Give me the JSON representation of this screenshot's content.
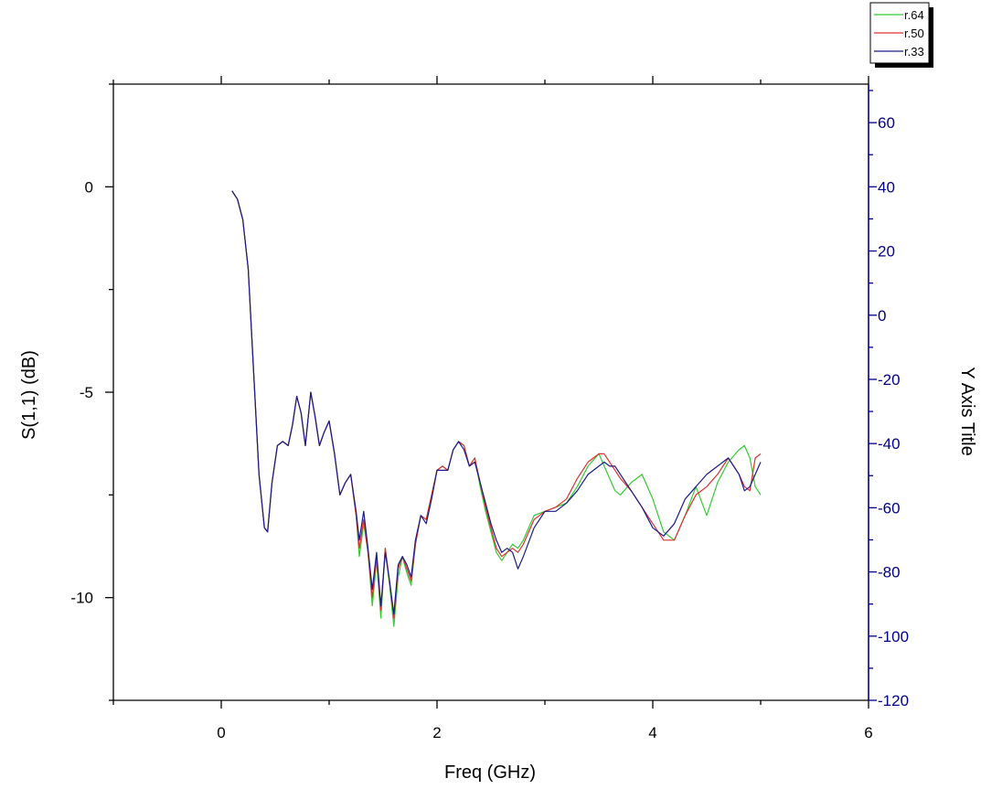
{
  "chart_data": {
    "type": "line",
    "xlabel": "Freq (GHz)",
    "ylabel": "S(1,1) (dB)",
    "y2label": "Y Axis Title",
    "xlim": [
      -1,
      6
    ],
    "ylim": [
      -12.5,
      2.5
    ],
    "y2lim": [
      -120,
      72
    ],
    "xticks": [
      0,
      2,
      4,
      6
    ],
    "yticks": [
      -10,
      -5,
      0
    ],
    "y2ticks": [
      60,
      40,
      20,
      0,
      -20,
      -40,
      -60,
      -80,
      -100,
      -120
    ],
    "legend_position": "top-right",
    "colors": {
      "axis": "#000000",
      "y2axis": "#00008b",
      "r64": "#33cc33",
      "r50": "#e03030",
      "r33": "#1a1a8c"
    },
    "series": [
      {
        "name": "r.64",
        "color": "#33cc33",
        "x": [
          0.1,
          0.15,
          0.2,
          0.25,
          0.3,
          0.35,
          0.4,
          0.43,
          0.47,
          0.52,
          0.57,
          0.62,
          0.66,
          0.7,
          0.74,
          0.78,
          0.83,
          0.87,
          0.91,
          0.95,
          1.0,
          1.05,
          1.1,
          1.15,
          1.2,
          1.25,
          1.28,
          1.32,
          1.36,
          1.4,
          1.44,
          1.48,
          1.52,
          1.56,
          1.6,
          1.64,
          1.68,
          1.72,
          1.76,
          1.8,
          1.85,
          1.9,
          1.95,
          2.0,
          2.05,
          2.1,
          2.15,
          2.2,
          2.25,
          2.3,
          2.35,
          2.4,
          2.45,
          2.5,
          2.55,
          2.6,
          2.65,
          2.7,
          2.75,
          2.8,
          2.9,
          3.0,
          3.1,
          3.2,
          3.3,
          3.4,
          3.5,
          3.55,
          3.6,
          3.65,
          3.7,
          3.8,
          3.9,
          4.0,
          4.1,
          4.2,
          4.3,
          4.4,
          4.5,
          4.6,
          4.7,
          4.8,
          4.85,
          4.9,
          4.95,
          5.0
        ],
        "y": [
          -0.1,
          -0.3,
          -0.8,
          -2.0,
          -4.5,
          -7.0,
          -8.3,
          -8.4,
          -7.2,
          -6.3,
          -6.2,
          -6.3,
          -5.8,
          -5.1,
          -5.5,
          -6.3,
          -5.0,
          -5.6,
          -6.3,
          -6.0,
          -5.7,
          -6.5,
          -7.5,
          -7.2,
          -7.0,
          -8.0,
          -9.0,
          -8.2,
          -8.9,
          -10.2,
          -9.1,
          -10.5,
          -8.8,
          -9.7,
          -10.7,
          -9.5,
          -9.0,
          -9.4,
          -9.7,
          -8.7,
          -8.0,
          -8.1,
          -7.5,
          -6.9,
          -6.8,
          -6.9,
          -6.4,
          -6.2,
          -6.3,
          -6.8,
          -6.6,
          -7.3,
          -7.9,
          -8.4,
          -8.9,
          -9.1,
          -8.9,
          -8.7,
          -8.8,
          -8.6,
          -8.0,
          -7.9,
          -7.8,
          -7.7,
          -7.3,
          -6.8,
          -6.5,
          -6.8,
          -7.1,
          -7.4,
          -7.5,
          -7.2,
          -7.0,
          -7.6,
          -8.4,
          -8.6,
          -8.0,
          -7.3,
          -8.0,
          -7.2,
          -6.7,
          -6.4,
          -6.3,
          -6.6,
          -7.3,
          -7.5
        ]
      },
      {
        "name": "r.50",
        "color": "#e03030",
        "x": [
          0.1,
          0.15,
          0.2,
          0.25,
          0.3,
          0.35,
          0.4,
          0.43,
          0.47,
          0.52,
          0.57,
          0.62,
          0.66,
          0.7,
          0.74,
          0.78,
          0.83,
          0.87,
          0.91,
          0.95,
          1.0,
          1.05,
          1.1,
          1.15,
          1.2,
          1.25,
          1.28,
          1.32,
          1.36,
          1.4,
          1.44,
          1.48,
          1.52,
          1.56,
          1.6,
          1.64,
          1.68,
          1.72,
          1.76,
          1.8,
          1.85,
          1.9,
          1.95,
          2.0,
          2.05,
          2.1,
          2.15,
          2.2,
          2.25,
          2.3,
          2.35,
          2.4,
          2.45,
          2.5,
          2.55,
          2.6,
          2.65,
          2.7,
          2.75,
          2.8,
          2.9,
          3.0,
          3.1,
          3.2,
          3.3,
          3.4,
          3.5,
          3.55,
          3.6,
          3.65,
          3.7,
          3.8,
          3.9,
          4.0,
          4.1,
          4.2,
          4.3,
          4.4,
          4.5,
          4.6,
          4.7,
          4.8,
          4.85,
          4.9,
          4.95,
          5.0
        ],
        "y": [
          -0.1,
          -0.3,
          -0.8,
          -2.0,
          -4.5,
          -7.0,
          -8.3,
          -8.4,
          -7.2,
          -6.3,
          -6.2,
          -6.3,
          -5.8,
          -5.1,
          -5.5,
          -6.3,
          -5.0,
          -5.6,
          -6.3,
          -6.0,
          -5.7,
          -6.5,
          -7.5,
          -7.2,
          -7.0,
          -8.0,
          -8.8,
          -8.1,
          -8.9,
          -10.0,
          -9.0,
          -10.3,
          -8.8,
          -9.6,
          -10.5,
          -9.3,
          -9.0,
          -9.3,
          -9.6,
          -8.7,
          -8.0,
          -8.1,
          -7.5,
          -6.9,
          -6.8,
          -6.9,
          -6.4,
          -6.2,
          -6.3,
          -6.8,
          -6.6,
          -7.2,
          -7.8,
          -8.3,
          -8.8,
          -9.0,
          -8.9,
          -8.8,
          -8.9,
          -8.7,
          -8.1,
          -7.9,
          -7.8,
          -7.6,
          -7.1,
          -6.7,
          -6.5,
          -6.5,
          -6.7,
          -6.9,
          -7.1,
          -7.4,
          -7.8,
          -8.2,
          -8.6,
          -8.6,
          -8.0,
          -7.5,
          -7.3,
          -7.0,
          -6.6,
          -7.0,
          -7.3,
          -7.4,
          -6.6,
          -6.5
        ]
      },
      {
        "name": "r.33",
        "color": "#1a1a8c",
        "x": [
          0.1,
          0.15,
          0.2,
          0.25,
          0.3,
          0.35,
          0.4,
          0.43,
          0.47,
          0.52,
          0.57,
          0.62,
          0.66,
          0.7,
          0.74,
          0.78,
          0.83,
          0.87,
          0.91,
          0.95,
          1.0,
          1.05,
          1.1,
          1.15,
          1.2,
          1.25,
          1.28,
          1.32,
          1.36,
          1.4,
          1.44,
          1.48,
          1.52,
          1.56,
          1.6,
          1.64,
          1.68,
          1.72,
          1.76,
          1.8,
          1.85,
          1.9,
          1.95,
          2.0,
          2.05,
          2.1,
          2.15,
          2.2,
          2.25,
          2.3,
          2.35,
          2.4,
          2.45,
          2.5,
          2.55,
          2.6,
          2.65,
          2.7,
          2.75,
          2.8,
          2.9,
          3.0,
          3.1,
          3.2,
          3.3,
          3.4,
          3.5,
          3.55,
          3.6,
          3.65,
          3.7,
          3.8,
          3.9,
          4.0,
          4.1,
          4.2,
          4.3,
          4.4,
          4.5,
          4.6,
          4.7,
          4.8,
          4.85,
          4.9,
          4.95,
          5.0
        ],
        "y": [
          -0.1,
          -0.3,
          -0.8,
          -2.0,
          -4.5,
          -7.0,
          -8.3,
          -8.4,
          -7.2,
          -6.3,
          -6.2,
          -6.3,
          -5.8,
          -5.1,
          -5.5,
          -6.3,
          -5.0,
          -5.6,
          -6.3,
          -6.0,
          -5.7,
          -6.5,
          -7.5,
          -7.2,
          -7.0,
          -7.9,
          -8.6,
          -7.9,
          -8.8,
          -9.8,
          -8.9,
          -10.2,
          -8.9,
          -9.6,
          -10.4,
          -9.2,
          -9.0,
          -9.2,
          -9.5,
          -8.6,
          -8.0,
          -8.2,
          -7.6,
          -6.9,
          -6.9,
          -6.9,
          -6.4,
          -6.2,
          -6.4,
          -6.8,
          -6.7,
          -7.2,
          -7.7,
          -8.2,
          -8.6,
          -8.9,
          -8.8,
          -8.9,
          -9.3,
          -9.0,
          -8.3,
          -7.9,
          -7.9,
          -7.7,
          -7.4,
          -7.0,
          -6.8,
          -6.7,
          -6.8,
          -6.8,
          -7.0,
          -7.4,
          -7.8,
          -8.3,
          -8.5,
          -8.2,
          -7.6,
          -7.3,
          -7.0,
          -6.8,
          -6.6,
          -7.0,
          -7.4,
          -7.3,
          -7.0,
          -6.7
        ]
      }
    ]
  }
}
